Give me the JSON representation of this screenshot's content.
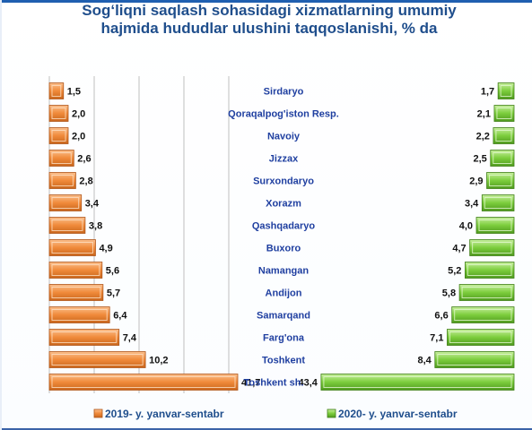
{
  "chart_data": {
    "type": "bar",
    "title_lines": [
      "Sog‘liqni saqlash sohasidagi xizmatlarning umumiy",
      "hajmida hududlar ulushini taqqoslanishi, % da"
    ],
    "categories": [
      "Sirdaryo",
      "Qoraqalpog'iston Resp.",
      "Navoiy",
      "Jizzax",
      "Surxondaryo",
      "Xorazm",
      "Qashqadaryo",
      "Buxoro",
      "Namangan",
      "Andijon",
      "Samarqand",
      "Farg'ona",
      "Toshkent",
      "Toshkent sh."
    ],
    "series": [
      {
        "name": "2019- y. yanvar-sentabr",
        "values": [
          1.5,
          2.0,
          2.0,
          2.6,
          2.8,
          3.4,
          3.8,
          4.9,
          5.6,
          5.7,
          6.4,
          7.4,
          10.2,
          41.7
        ],
        "labels": [
          "1,5",
          "2,0",
          "2,0",
          "2,6",
          "2,8",
          "3,4",
          "3,8",
          "4,9",
          "5,6",
          "5,7",
          "6,4",
          "7,4",
          "10,2",
          "41,7"
        ],
        "color": "#f08a3a"
      },
      {
        "name": "2020- y. yanvar-sentabr",
        "values": [
          1.7,
          2.1,
          2.2,
          2.5,
          2.9,
          3.4,
          4.0,
          4.7,
          5.2,
          5.8,
          6.6,
          7.1,
          8.4,
          43.4
        ],
        "labels": [
          "1,7",
          "2,1",
          "2,2",
          "2,5",
          "2,9",
          "3,4",
          "4,0",
          "4,7",
          "5,2",
          "5,8",
          "6,6",
          "7,1",
          "8,4",
          "43,4"
        ],
        "color": "#7ccd3c"
      }
    ],
    "layout": "back-to-back horizontal bars, 2019 on the left, 2020 on the right",
    "legend_position": "bottom",
    "grid": true,
    "title_color": "#1f4e8c",
    "category_label_color": "#1f3fa0"
  }
}
